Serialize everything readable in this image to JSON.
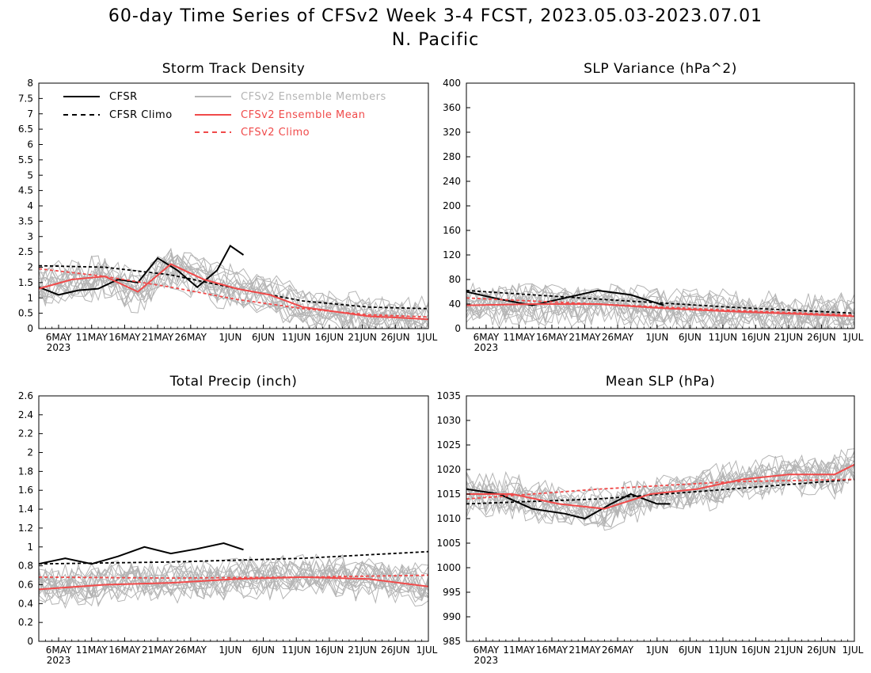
{
  "figure": {
    "title": "60-day Time Series of CFSv2 Week 3-4 FCST, 2023.05.03-2023.07.01",
    "subtitle": "N. Pacific"
  },
  "legend": [
    {
      "label": "CFSR",
      "color": "#000000",
      "dash": false
    },
    {
      "label": "CFSR Climo",
      "color": "#000000",
      "dash": true
    },
    {
      "label": "CFSv2 Ensemble Members",
      "color": "#b4b4b4",
      "dash": false
    },
    {
      "label": "CFSv2 Ensemble Mean",
      "color": "#f04a4a",
      "dash": false
    },
    {
      "label": "CFSv2 Climo",
      "color": "#f04a4a",
      "dash": true
    }
  ],
  "x_axis": {
    "tick_labels": [
      "6MAY",
      "11MAY",
      "16MAY",
      "21MAY",
      "26MAY",
      "1JUN",
      "6JUN",
      "11JUN",
      "16JUN",
      "21JUN",
      "26JUN",
      "1JUL"
    ],
    "year_label": "2023",
    "days_range": [
      "2023-05-03",
      "2023-07-01"
    ]
  },
  "colors": {
    "cfsr": "#000000",
    "members": "#b4b4b4",
    "mean": "#f04a4a"
  },
  "chart_data": [
    {
      "type": "line",
      "title": "Storm Track Density",
      "ylim": [
        0,
        8
      ],
      "yticks": [
        "0",
        "0.5",
        "1",
        "1.5",
        "2",
        "2.5",
        "3",
        "3.5",
        "4",
        "4.5",
        "5",
        "5.5",
        "6",
        "6.5",
        "7",
        "7.5",
        "8"
      ],
      "show_legend": true,
      "series": [
        {
          "name": "CFSR",
          "x": [
            "2023-05-03",
            "2023-05-06",
            "2023-05-09",
            "2023-05-12",
            "2023-05-15",
            "2023-05-18",
            "2023-05-21",
            "2023-05-24",
            "2023-05-27",
            "2023-05-30",
            "2023-06-01",
            "2023-06-03"
          ],
          "values": [
            1.35,
            1.1,
            1.25,
            1.3,
            1.6,
            1.5,
            2.3,
            1.9,
            1.35,
            1.9,
            2.7,
            2.4
          ]
        },
        {
          "name": "CFSR Climo",
          "x": [
            "2023-05-03",
            "2023-05-13",
            "2023-05-23",
            "2023-06-02",
            "2023-06-12",
            "2023-06-22",
            "2023-07-01"
          ],
          "values": [
            2.05,
            2.0,
            1.75,
            1.3,
            0.9,
            0.7,
            0.65
          ]
        },
        {
          "name": "CFSv2 Ensemble Mean",
          "x": [
            "2023-05-03",
            "2023-05-08",
            "2023-05-13",
            "2023-05-18",
            "2023-05-23",
            "2023-05-28",
            "2023-06-02",
            "2023-06-07",
            "2023-06-12",
            "2023-06-17",
            "2023-06-22",
            "2023-06-27",
            "2023-07-01"
          ],
          "values": [
            1.3,
            1.6,
            1.7,
            1.2,
            2.1,
            1.6,
            1.3,
            1.1,
            0.7,
            0.55,
            0.4,
            0.35,
            0.3
          ]
        },
        {
          "name": "CFSv2 Climo",
          "x": [
            "2023-05-03",
            "2023-05-13",
            "2023-05-23",
            "2023-06-02",
            "2023-06-12",
            "2023-06-22",
            "2023-07-01"
          ],
          "values": [
            1.95,
            1.7,
            1.35,
            0.95,
            0.65,
            0.45,
            0.38
          ]
        }
      ]
    },
    {
      "type": "line",
      "title": "SLP Variance (hPa^2)",
      "ylim": [
        0,
        400
      ],
      "yticks": [
        "0",
        "40",
        "80",
        "120",
        "160",
        "200",
        "240",
        "280",
        "320",
        "360",
        "400"
      ],
      "show_legend": false,
      "series": [
        {
          "name": "CFSR",
          "x": [
            "2023-05-03",
            "2023-05-08",
            "2023-05-13",
            "2023-05-18",
            "2023-05-23",
            "2023-05-28",
            "2023-06-02"
          ],
          "values": [
            60,
            48,
            38,
            50,
            62,
            55,
            38
          ]
        },
        {
          "name": "CFSR Climo",
          "x": [
            "2023-05-03",
            "2023-05-23",
            "2023-06-12",
            "2023-07-01"
          ],
          "values": [
            62,
            48,
            35,
            25
          ]
        },
        {
          "name": "CFSv2 Ensemble Mean",
          "x": [
            "2023-05-03",
            "2023-05-13",
            "2023-05-23",
            "2023-06-02",
            "2023-06-12",
            "2023-06-22",
            "2023-07-01"
          ],
          "values": [
            38,
            40,
            40,
            33,
            28,
            24,
            20
          ]
        },
        {
          "name": "CFSv2 Climo",
          "x": [
            "2023-05-03",
            "2023-05-23",
            "2023-06-12",
            "2023-07-01"
          ],
          "values": [
            50,
            40,
            30,
            22
          ]
        }
      ]
    },
    {
      "type": "line",
      "title": "Total Precip (inch)",
      "ylim": [
        0,
        2.6
      ],
      "yticks": [
        "0",
        "0.2",
        "0.4",
        "0.6",
        "0.8",
        "1",
        "1.2",
        "1.4",
        "1.6",
        "1.8",
        "2",
        "2.2",
        "2.4",
        "2.6"
      ],
      "show_legend": false,
      "series": [
        {
          "name": "CFSR",
          "x": [
            "2023-05-03",
            "2023-05-07",
            "2023-05-11",
            "2023-05-15",
            "2023-05-19",
            "2023-05-23",
            "2023-05-27",
            "2023-05-31",
            "2023-06-03"
          ],
          "values": [
            0.82,
            0.88,
            0.82,
            0.9,
            1.0,
            0.93,
            0.98,
            1.04,
            0.97
          ]
        },
        {
          "name": "CFSR Climo",
          "x": [
            "2023-05-03",
            "2023-05-23",
            "2023-06-12",
            "2023-07-01"
          ],
          "values": [
            0.82,
            0.84,
            0.88,
            0.95
          ]
        },
        {
          "name": "CFSv2 Ensemble Mean",
          "x": [
            "2023-05-03",
            "2023-05-13",
            "2023-05-23",
            "2023-06-02",
            "2023-06-12",
            "2023-06-22",
            "2023-07-01"
          ],
          "values": [
            0.55,
            0.6,
            0.62,
            0.66,
            0.68,
            0.66,
            0.58
          ]
        },
        {
          "name": "CFSv2 Climo",
          "x": [
            "2023-05-03",
            "2023-05-23",
            "2023-06-12",
            "2023-07-01"
          ],
          "values": [
            0.68,
            0.67,
            0.68,
            0.7
          ]
        }
      ]
    },
    {
      "type": "line",
      "title": "Mean SLP (hPa)",
      "ylim": [
        985,
        1035
      ],
      "yticks": [
        "985",
        "990",
        "995",
        "1000",
        "1005",
        "1010",
        "1015",
        "1020",
        "1025",
        "1030",
        "1035"
      ],
      "show_legend": false,
      "series": [
        {
          "name": "CFSR",
          "x": [
            "2023-05-03",
            "2023-05-08",
            "2023-05-13",
            "2023-05-18",
            "2023-05-21",
            "2023-05-25",
            "2023-05-28",
            "2023-06-01",
            "2023-06-03"
          ],
          "values": [
            1016,
            1015,
            1012,
            1011,
            1010,
            1013,
            1015,
            1013,
            1013
          ]
        },
        {
          "name": "CFSR Climo",
          "x": [
            "2023-05-03",
            "2023-05-23",
            "2023-06-12",
            "2023-07-01"
          ],
          "values": [
            1013,
            1014,
            1016,
            1018
          ]
        },
        {
          "name": "CFSv2 Ensemble Mean",
          "x": [
            "2023-05-03",
            "2023-05-10",
            "2023-05-17",
            "2023-05-24",
            "2023-05-31",
            "2023-06-07",
            "2023-06-14",
            "2023-06-21",
            "2023-06-28",
            "2023-07-01"
          ],
          "values": [
            1015,
            1015,
            1013,
            1012,
            1015,
            1016,
            1018,
            1019,
            1019,
            1021
          ]
        },
        {
          "name": "CFSv2 Climo",
          "x": [
            "2023-05-03",
            "2023-05-23",
            "2023-06-12",
            "2023-07-01"
          ],
          "values": [
            1014,
            1016,
            1017.5,
            1018
          ]
        }
      ]
    }
  ]
}
